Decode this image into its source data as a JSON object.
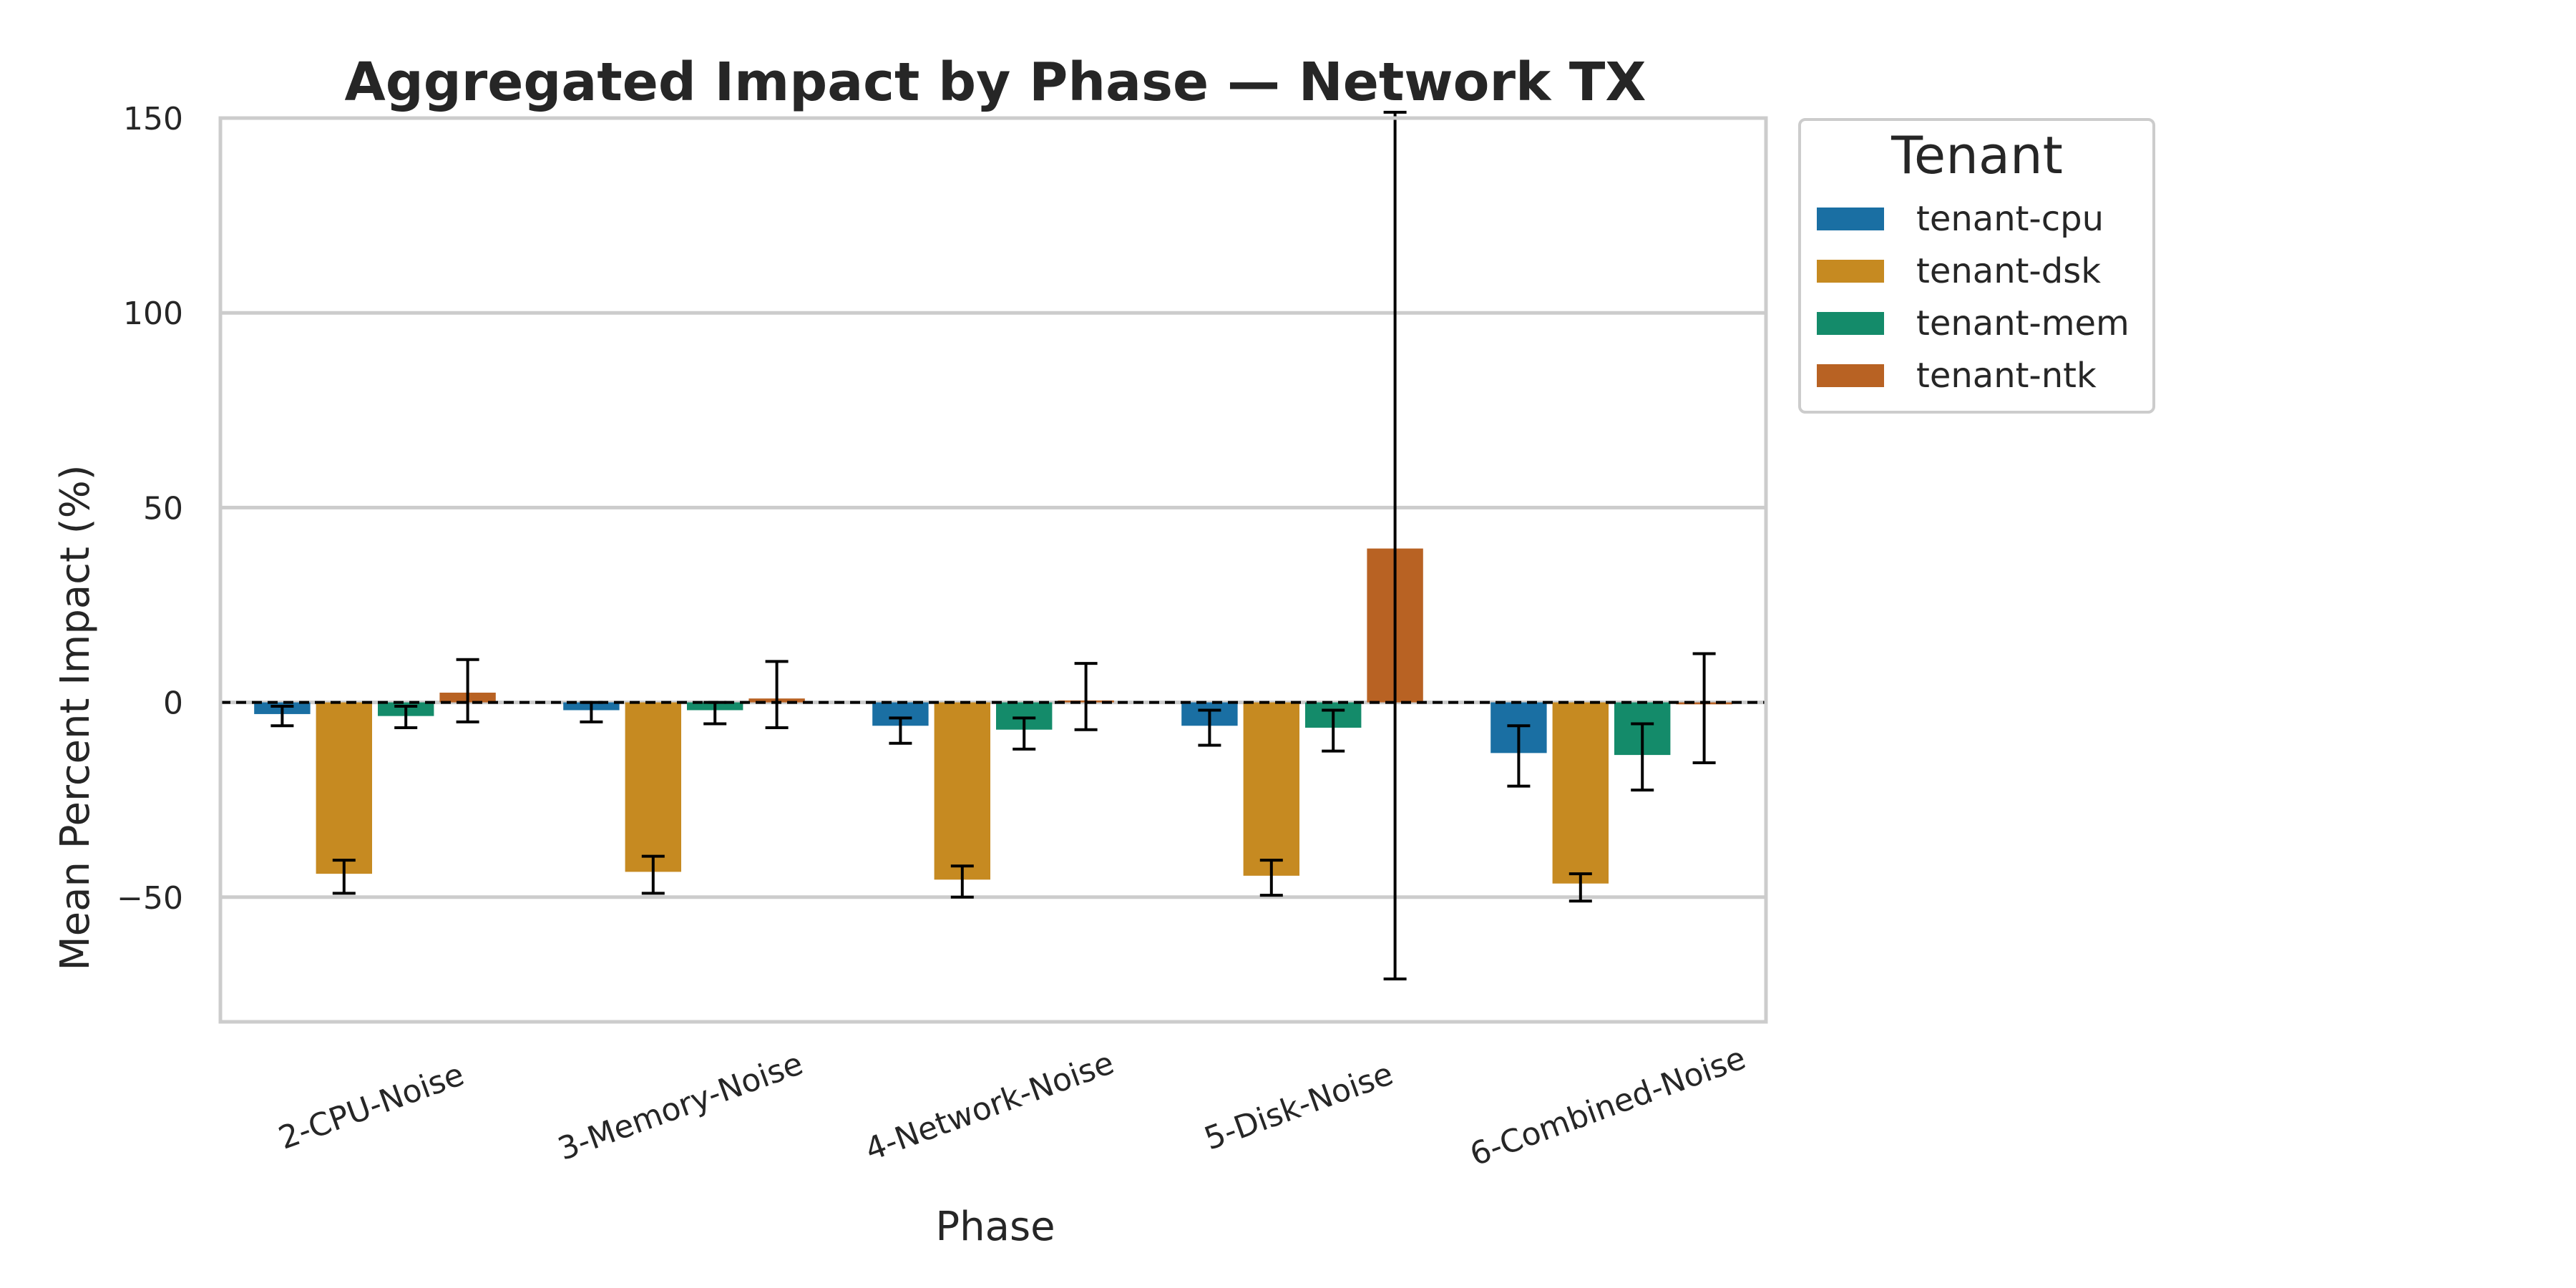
{
  "chart_data": {
    "type": "bar",
    "title": "Aggregated Impact by Phase — Network TX",
    "xlabel": "Phase",
    "ylabel": "Mean Percent Impact (%)",
    "ylim": [
      -82,
      150
    ],
    "yticks": [
      -50,
      0,
      50,
      100,
      150
    ],
    "ytick_labels": [
      "−50",
      "0",
      "50",
      "100",
      "150"
    ],
    "categories": [
      "2-CPU-Noise",
      "3-Memory-Noise",
      "4-Network-Noise",
      "5-Disk-Noise",
      "6-Combined-Noise"
    ],
    "grid": "horizontal",
    "zero_line": "dashed",
    "legend": {
      "title": "Tenant",
      "placement": "outside right"
    },
    "series": [
      {
        "name": "tenant-cpu",
        "color": "#1a6fa3",
        "values": [
          -3,
          -2,
          -6,
          -6,
          -13
        ],
        "err_low": [
          -6,
          -5,
          -10.5,
          -11,
          -21.5
        ],
        "err_high": [
          -1,
          0,
          -4,
          -2,
          -6
        ]
      },
      {
        "name": "tenant-dsk",
        "color": "#c68a21",
        "values": [
          -44,
          -43.5,
          -45.5,
          -44.5,
          -46.5
        ],
        "err_low": [
          -49,
          -49,
          -50,
          -49.5,
          -51
        ],
        "err_high": [
          -40.5,
          -39.5,
          -42,
          -40.5,
          -44
        ]
      },
      {
        "name": "tenant-mem",
        "color": "#148b6a",
        "values": [
          -3.5,
          -2,
          -7,
          -6.5,
          -13.5
        ],
        "err_low": [
          -6.5,
          -5.5,
          -12,
          -12.5,
          -22.5
        ],
        "err_high": [
          -1,
          0,
          -4,
          -2,
          -5.5
        ]
      },
      {
        "name": "tenant-ntk",
        "color": "#b86223",
        "values": [
          2.5,
          1,
          0.5,
          39.5,
          -0.5
        ],
        "err_low": [
          -5,
          -6.5,
          -7,
          -71,
          -15.5
        ],
        "err_high": [
          11,
          10.5,
          10,
          151.5,
          12.5
        ]
      }
    ]
  }
}
